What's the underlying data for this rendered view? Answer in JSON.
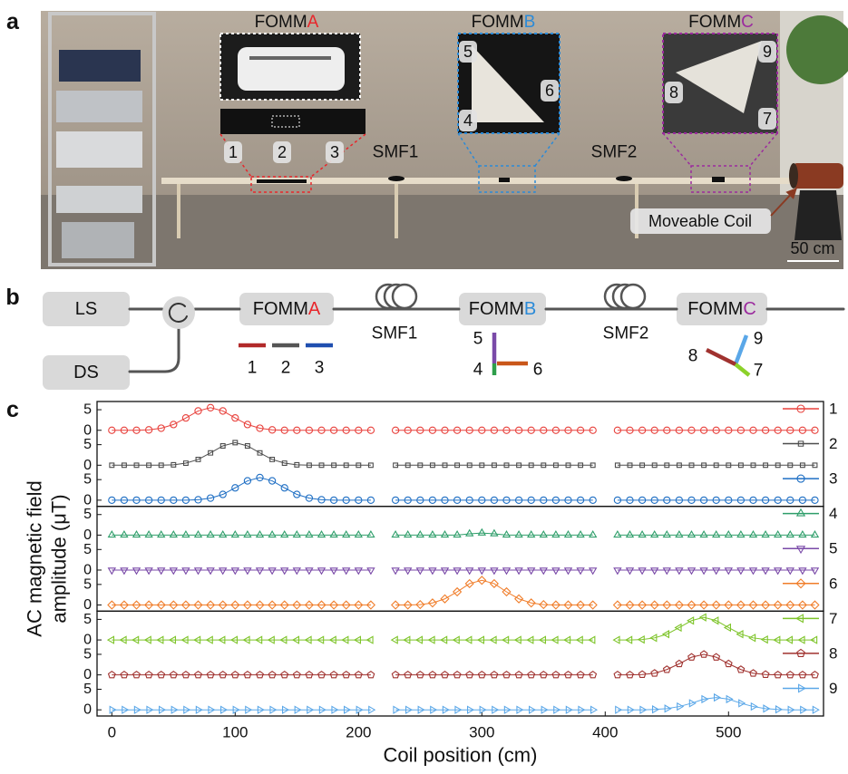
{
  "panel_labels": [
    "a",
    "b",
    "c"
  ],
  "photo": {
    "modules": [
      {
        "name": "FOMM",
        "letter": "A",
        "letter_color": "#e8262b"
      },
      {
        "name": "FOMM",
        "letter": "B",
        "letter_color": "#2a8ad8"
      },
      {
        "name": "FOMM",
        "letter": "C",
        "letter_color": "#9b2a9e"
      }
    ],
    "port_labels": [
      "1",
      "2",
      "3",
      "4",
      "5",
      "6",
      "7",
      "8",
      "9"
    ],
    "fibers": [
      "SMF1",
      "SMF2"
    ],
    "coil_label": "Moveable Coil",
    "scale_bar": "50 cm"
  },
  "schematic": {
    "source": "LS",
    "detector": "DS",
    "modules": [
      {
        "name": "FOMM",
        "letter": "A",
        "letter_color": "#e8262b"
      },
      {
        "name": "FOMM",
        "letter": "B",
        "letter_color": "#2a8ad8"
      },
      {
        "name": "FOMM",
        "letter": "C",
        "letter_color": "#9b2a9e"
      }
    ],
    "fibers": [
      "SMF1",
      "SMF2"
    ],
    "ports": [
      {
        "label": "1",
        "color": "#b22a2a"
      },
      {
        "label": "2",
        "color": "#555555"
      },
      {
        "label": "3",
        "color": "#1f4fb0"
      },
      {
        "label": "4",
        "color": "#2e9e4a"
      },
      {
        "label": "5",
        "color": "#7a4aa8"
      },
      {
        "label": "6",
        "color": "#c9561a"
      },
      {
        "label": "7",
        "color": "#8cd12a"
      },
      {
        "label": "8",
        "color": "#a0322f"
      },
      {
        "label": "9",
        "color": "#5aa7e8"
      }
    ]
  },
  "chart_data": {
    "type": "line",
    "xlabel": "Coil position (cm)",
    "ylabel": [
      "AC magnetic field",
      "amplitude (μT)"
    ],
    "xlim": [
      -12,
      577
    ],
    "xticks": [
      0,
      100,
      200,
      300,
      400,
      500
    ],
    "ylim": [
      -1.5,
      7
    ],
    "yticks": [
      0,
      5
    ],
    "grid": false,
    "legend": "upper right",
    "x": [
      0,
      10,
      20,
      30,
      40,
      50,
      60,
      70,
      80,
      90,
      100,
      110,
      120,
      130,
      140,
      150,
      160,
      170,
      180,
      190,
      200,
      210,
      220,
      230,
      240,
      250,
      260,
      270,
      280,
      290,
      300,
      310,
      320,
      330,
      340,
      350,
      360,
      370,
      380,
      390,
      400,
      410,
      420,
      430,
      440,
      450,
      460,
      470,
      480,
      490,
      500,
      510,
      520,
      530,
      540,
      550,
      560,
      570
    ],
    "series": [
      {
        "name": "1",
        "color": "#e8413c",
        "marker": "circle",
        "values": [
          0,
          0,
          0,
          0.1,
          0.5,
          1.4,
          3,
          4.7,
          5.5,
          4.7,
          3,
          1.4,
          0.5,
          0.1,
          0,
          0,
          0,
          0,
          0,
          0,
          0,
          0,
          null,
          0,
          0,
          0,
          0,
          0,
          0,
          0,
          0,
          0,
          0,
          0,
          0,
          0,
          0,
          0,
          0,
          0,
          null,
          0,
          0,
          0,
          0,
          0,
          0,
          0,
          0,
          0,
          0,
          0,
          0,
          0,
          0,
          0,
          0,
          0
        ]
      },
      {
        "name": "2",
        "color": "#4d4d4d",
        "marker": "square",
        "values": [
          0,
          0,
          0,
          0,
          0,
          0.1,
          0.5,
          1.4,
          3,
          4.7,
          5.5,
          4.7,
          3,
          1.4,
          0.5,
          0.1,
          0,
          0,
          0,
          0,
          0,
          0,
          null,
          0,
          0,
          0,
          0,
          0,
          0,
          0,
          0,
          0,
          0,
          0,
          0,
          0,
          0,
          0,
          0,
          0,
          null,
          0,
          0,
          0,
          0,
          0,
          0,
          0,
          0,
          0,
          0,
          0,
          0,
          0,
          0,
          0,
          0,
          0
        ]
      },
      {
        "name": "3",
        "color": "#1f6fc4",
        "marker": "circle",
        "values": [
          0,
          0,
          0,
          0,
          0,
          0,
          0,
          0.1,
          0.5,
          1.4,
          3,
          4.7,
          5.5,
          4.7,
          3,
          1.4,
          0.5,
          0.1,
          0,
          0,
          0,
          0,
          null,
          0,
          0,
          0,
          0,
          0,
          0,
          0,
          0,
          0,
          0,
          0,
          0,
          0,
          0,
          0,
          0,
          0,
          null,
          0,
          0,
          0,
          0,
          0,
          0,
          0,
          0,
          0,
          0,
          0,
          0,
          0,
          0,
          0,
          0,
          0
        ]
      },
      {
        "name": "4",
        "color": "#2e9e6a",
        "marker": "triangle-up",
        "values": [
          0,
          0,
          0,
          0,
          0,
          0,
          0,
          0,
          0,
          0,
          0,
          0,
          0,
          0,
          0,
          0,
          0,
          0,
          0,
          0,
          0,
          0,
          null,
          0,
          0,
          0,
          0,
          0,
          0,
          0.3,
          0.5,
          0.3,
          0,
          0,
          0,
          0,
          0,
          0,
          0,
          0,
          null,
          0,
          0,
          0,
          0,
          0,
          0,
          0,
          0,
          0,
          0,
          0,
          0,
          0,
          0,
          0,
          0,
          0
        ]
      },
      {
        "name": "5",
        "color": "#7a4aa8",
        "marker": "triangle-down",
        "values": [
          0,
          0,
          0,
          0,
          0,
          0,
          0,
          0,
          0,
          0,
          0,
          0,
          0,
          0,
          0,
          0,
          0,
          0,
          0,
          0,
          0,
          0,
          null,
          0,
          0,
          0,
          0,
          0,
          0,
          0,
          0,
          0,
          0,
          0,
          0,
          0,
          0,
          0,
          0,
          0,
          null,
          0,
          0,
          0,
          0,
          0,
          0,
          0,
          0,
          0,
          0,
          0,
          0,
          0,
          0,
          0,
          0,
          0
        ]
      },
      {
        "name": "6",
        "color": "#f07d2a",
        "marker": "diamond",
        "values": [
          0,
          0,
          0,
          0,
          0,
          0,
          0,
          0,
          0,
          0,
          0,
          0,
          0,
          0,
          0,
          0,
          0,
          0,
          0,
          0,
          0,
          0,
          null,
          0,
          0,
          0.1,
          0.5,
          1.5,
          3.2,
          5.2,
          6,
          5.2,
          3.2,
          1.5,
          0.5,
          0.1,
          0,
          0,
          0,
          0,
          null,
          0,
          0,
          0,
          0,
          0,
          0,
          0,
          0,
          0,
          0,
          0,
          0,
          0,
          0,
          0,
          0,
          0
        ]
      },
      {
        "name": "7",
        "color": "#7ec42a",
        "marker": "triangle-left",
        "values": [
          0,
          0,
          0,
          0,
          0,
          0,
          0,
          0,
          0,
          0,
          0,
          0,
          0,
          0,
          0,
          0,
          0,
          0,
          0,
          0,
          0,
          0,
          null,
          0,
          0,
          0,
          0,
          0,
          0,
          0,
          0,
          0,
          0,
          0,
          0,
          0,
          0,
          0,
          0,
          0,
          null,
          0,
          0,
          0.1,
          0.5,
          1.4,
          3,
          4.7,
          5.5,
          4.7,
          3,
          1.4,
          0.5,
          0.1,
          0,
          0,
          0,
          0
        ]
      },
      {
        "name": "8",
        "color": "#a0322f",
        "marker": "pentagon",
        "values": [
          0,
          0,
          0,
          0,
          0,
          0,
          0,
          0,
          0,
          0,
          0,
          0,
          0,
          0,
          0,
          0,
          0,
          0,
          0,
          0,
          0,
          0,
          null,
          0,
          0,
          0,
          0,
          0,
          0,
          0,
          0,
          0,
          0,
          0,
          0,
          0,
          0,
          0,
          0,
          0,
          null,
          0,
          0,
          0.1,
          0.4,
          1.3,
          2.7,
          4.3,
          5,
          4.3,
          2.7,
          1.3,
          0.4,
          0.1,
          0,
          0,
          0,
          0
        ]
      },
      {
        "name": "9",
        "color": "#5aa7e8",
        "marker": "triangle-right",
        "values": [
          0,
          0,
          0,
          0,
          0,
          0,
          0,
          0,
          0,
          0,
          0,
          0,
          0,
          0,
          0,
          0,
          0,
          0,
          0,
          0,
          0,
          0,
          null,
          0,
          0,
          0,
          0,
          0,
          0,
          0,
          0,
          0,
          0,
          0,
          0,
          0,
          0,
          0,
          0,
          0,
          null,
          0,
          0,
          0,
          0.1,
          0.3,
          0.8,
          1.6,
          2.6,
          3,
          2.6,
          1.6,
          0.8,
          0.3,
          0.1,
          0,
          0,
          0
        ]
      }
    ]
  }
}
